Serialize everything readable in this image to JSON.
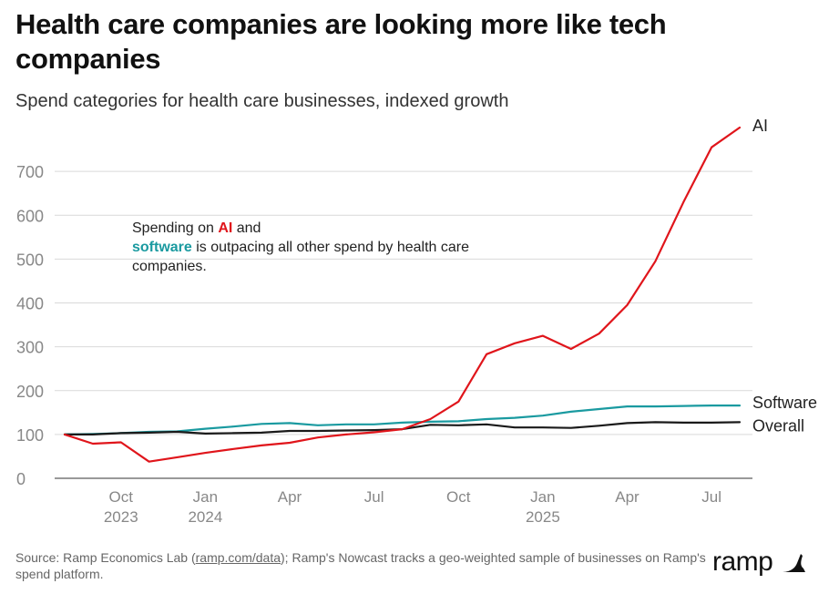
{
  "title": "Health care companies are looking more like tech companies",
  "subtitle": "Spend categories for health care businesses, indexed growth",
  "annotation": {
    "pre": "Spending on ",
    "ai": "AI",
    "mid": " and",
    "software": "software",
    "post": " is outpacing all other spend by health care companies."
  },
  "source": {
    "pre": "Source: Ramp Economics Lab (",
    "link": "ramp.com/data",
    "post": "); Ramp's Nowcast tracks a geo-weighted sample of businesses on Ramp's spend platform."
  },
  "logo": {
    "text": "ramp",
    "mark": "ramp-logo-icon"
  },
  "colors": {
    "ai": "#e0151b",
    "software": "#1a9aa0",
    "overall": "#1a1a1a",
    "grid": "#d9d9d9",
    "axis": "#333333",
    "tick": "#888888"
  },
  "chart_data": {
    "type": "line",
    "title": "Health care companies are looking more like tech companies",
    "ylabel": "",
    "xlabel": "",
    "ylim": [
      0,
      800
    ],
    "yticks": [
      0,
      100,
      200,
      300,
      400,
      500,
      600,
      700
    ],
    "x": [
      "2023-08",
      "2023-09",
      "2023-10",
      "2023-11",
      "2023-12",
      "2024-01",
      "2024-02",
      "2024-03",
      "2024-04",
      "2024-05",
      "2024-06",
      "2024-07",
      "2024-08",
      "2024-09",
      "2024-10",
      "2024-11",
      "2024-12",
      "2025-01",
      "2025-02",
      "2025-03",
      "2025-04",
      "2025-05",
      "2025-06",
      "2025-07",
      "2025-08"
    ],
    "xticks": [
      {
        "label": "Oct",
        "sub": "2023",
        "x": "2023-10"
      },
      {
        "label": "Jan",
        "sub": "2024",
        "x": "2024-01"
      },
      {
        "label": "Apr",
        "sub": "",
        "x": "2024-04"
      },
      {
        "label": "Jul",
        "sub": "",
        "x": "2024-07"
      },
      {
        "label": "Oct",
        "sub": "",
        "x": "2024-10"
      },
      {
        "label": "Jan",
        "sub": "2025",
        "x": "2025-01"
      },
      {
        "label": "Apr",
        "sub": "",
        "x": "2025-04"
      },
      {
        "label": "Jul",
        "sub": "",
        "x": "2025-07"
      }
    ],
    "series": [
      {
        "name": "AI",
        "color": "#e0151b",
        "values": [
          100,
          79,
          82,
          38,
          48,
          58,
          67,
          75,
          81,
          93,
          100,
          105,
          112,
          135,
          175,
          283,
          308,
          325,
          295,
          330,
          395,
          495,
          630,
          755,
          800
        ]
      },
      {
        "name": "Software",
        "color": "#1a9aa0",
        "values": [
          100,
          101,
          103,
          106,
          107,
          113,
          118,
          124,
          126,
          121,
          123,
          123,
          127,
          129,
          130,
          135,
          138,
          143,
          152,
          158,
          164,
          164,
          165,
          166,
          166
        ]
      },
      {
        "name": "Overall",
        "color": "#1a1a1a",
        "values": [
          100,
          100,
          103,
          104,
          106,
          102,
          103,
          104,
          108,
          108,
          109,
          110,
          112,
          122,
          121,
          123,
          116,
          116,
          115,
          120,
          126,
          128,
          127,
          127,
          128
        ]
      }
    ]
  }
}
